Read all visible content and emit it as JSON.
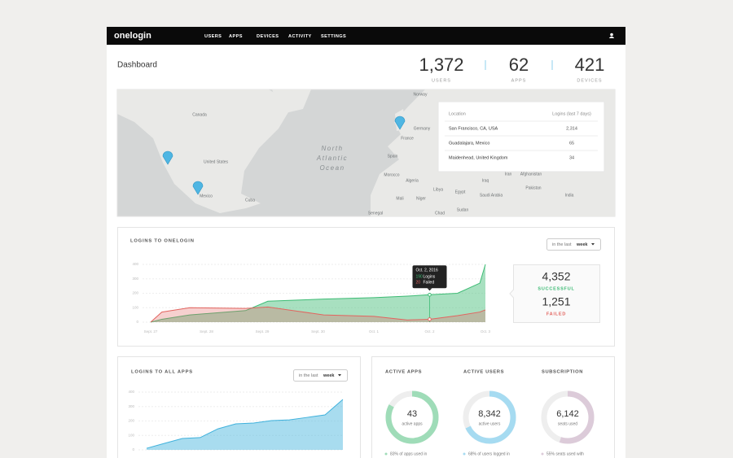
{
  "nav": {
    "logo": "onelogin",
    "links": [
      "USERS",
      "APPS",
      "DEVICES",
      "ACTIVITY",
      "SETTINGS"
    ]
  },
  "header": {
    "title": "Dashboard",
    "stats": [
      {
        "value": "1,372",
        "label": "USERS"
      },
      {
        "value": "62",
        "label": "APPS"
      },
      {
        "value": "421",
        "label": "DEVICES"
      }
    ]
  },
  "map": {
    "labels": [
      "Norway",
      "Canada",
      "United States",
      "Mexico",
      "Cuba",
      "North",
      "Atlantic",
      "Ocean",
      "Germany",
      "France",
      "Spain",
      "Morocco",
      "Algeria",
      "Libya",
      "Egypt",
      "Mali",
      "Niger",
      "Chad",
      "Senegal",
      "Sudan",
      "Saudi Arabia",
      "Iraq",
      "Iran",
      "Afghanistan",
      "Pakistan",
      "India"
    ],
    "table": {
      "columns": [
        "Location",
        "Logins (last 7 days)"
      ],
      "rows": [
        [
          "San Francisco, CA, USA",
          "2,314"
        ],
        [
          "Guadalajara, Mexico",
          "65"
        ],
        [
          "Maidenhead, United Kingdom",
          "34"
        ]
      ]
    }
  },
  "chart_data": [
    {
      "type": "area",
      "title": "LOGINS TO ONELOGIN",
      "filter": {
        "prefix": "in the last",
        "value": "week"
      },
      "x": [
        0,
        0.2,
        0.7,
        1.7,
        2.1,
        3.1,
        4,
        4.6,
        5,
        5.5,
        5.9,
        6
      ],
      "xlim": [
        0,
        6
      ],
      "xticks": [
        {
          "value": 0,
          "label": "Sept. 27"
        },
        {
          "value": 1,
          "label": "Sept. 28"
        },
        {
          "value": 2,
          "label": "Sept. 29"
        },
        {
          "value": 3,
          "label": "Sept. 30"
        },
        {
          "value": 4,
          "label": "Oct. 1"
        },
        {
          "value": 5,
          "label": "Oct. 2"
        },
        {
          "value": 6,
          "label": "Oct. 3"
        }
      ],
      "ylim": [
        0,
        400
      ],
      "yticks": [
        0,
        100,
        200,
        300,
        400
      ],
      "grid": true,
      "series": [
        {
          "name": "Logins",
          "color": "#3dbb74",
          "values": [
            0,
            20,
            50,
            80,
            145,
            160,
            170,
            180,
            190,
            200,
            270,
            400
          ]
        },
        {
          "name": "Failed",
          "color": "#e2645f",
          "values": [
            0,
            70,
            100,
            95,
            105,
            50,
            40,
            15,
            20,
            45,
            70,
            85
          ]
        }
      ],
      "tooltip": {
        "title": "Oct. 2, 2016",
        "x": 5
      },
      "summary": [
        {
          "value": "4,352",
          "label": "SUCCESSFUL",
          "color": "#3dbb74"
        },
        {
          "value": "1,251",
          "label": "FAILED",
          "color": "#e2645f"
        }
      ]
    },
    {
      "type": "area",
      "title": "LOGINS TO ALL APPS",
      "filter": {
        "prefix": "in the last",
        "value": "week"
      },
      "x": [
        0,
        1,
        2,
        3,
        4,
        5,
        6,
        7,
        8,
        9,
        10,
        11
      ],
      "xlim": [
        0,
        11
      ],
      "ylim": [
        0,
        400
      ],
      "yticks": [
        0,
        100,
        200,
        300,
        400
      ],
      "grid": true,
      "series": [
        {
          "name": "Logins",
          "color": "#3fb1dc",
          "values": [
            11,
            45,
            79,
            85,
            146,
            180,
            186,
            203,
            208,
            225,
            242,
            349
          ]
        }
      ]
    }
  ],
  "stats": [
    {
      "title": "ACTIVE APPS",
      "value": "43",
      "label": "active apps",
      "percent": 83,
      "caption": "83% of apps used in",
      "color": "#9fdcb8"
    },
    {
      "title": "ACTIVE USERS",
      "value": "8,342",
      "label": "active users",
      "percent": 68,
      "caption": "68% of users logged in",
      "color": "#a6dbf1"
    },
    {
      "title": "SUBSCRIPTION",
      "value": "6,142",
      "label": "seats used",
      "percent": 55,
      "caption": "55% seats used with",
      "color": "#dccbd9"
    }
  ]
}
